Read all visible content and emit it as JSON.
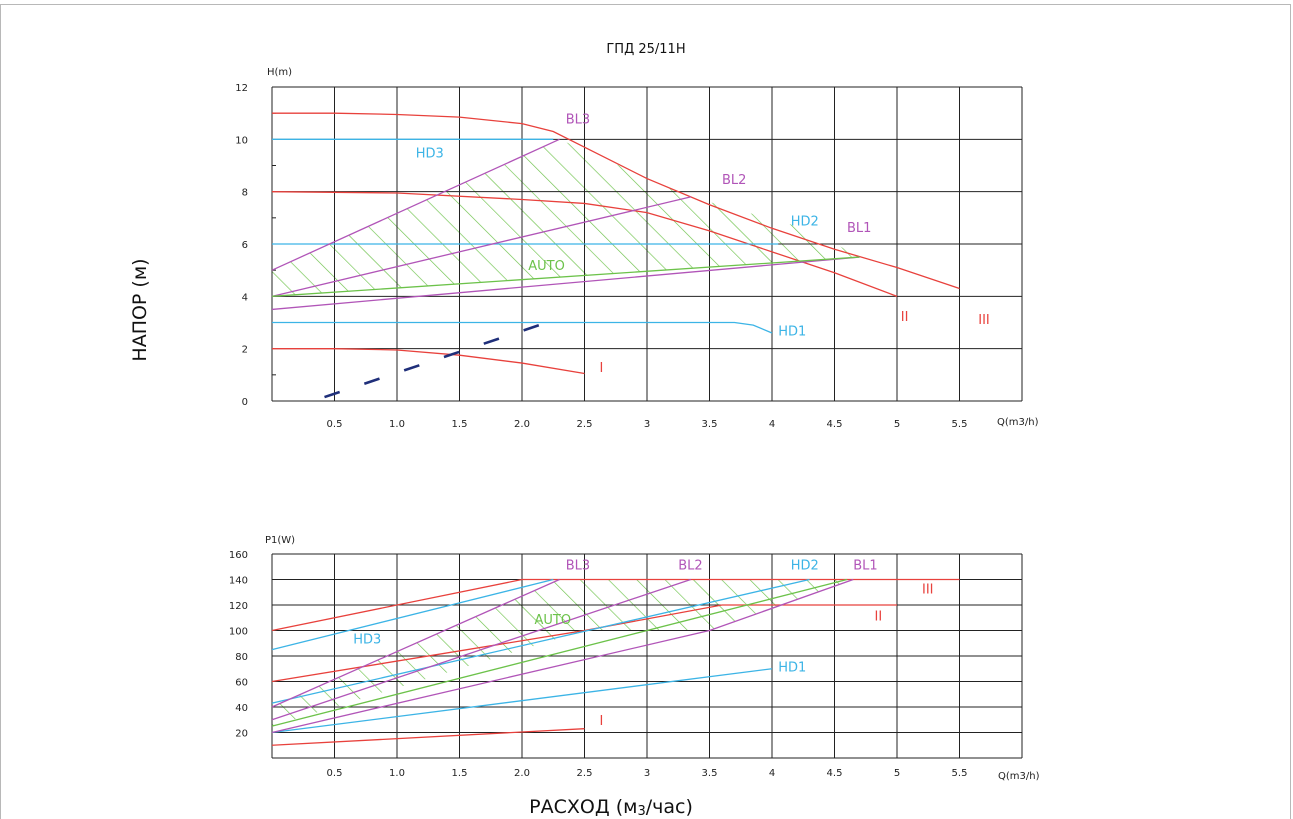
{
  "page": {
    "title": "ГПД 25/11Н",
    "ylabel": "НАПОР (м)",
    "xlabel": "РАСХОД (м3/час)"
  },
  "colors": {
    "red": "#e8413c",
    "blue": "#3cb4e6",
    "purple": "#b155b8",
    "green": "#6cc24a",
    "navy": "#1f2f7a",
    "grid": "#222222"
  },
  "chart_data": [
    {
      "type": "line",
      "title": "",
      "ylabel": "H(m)",
      "xlabel": "Q(m3/h)",
      "xlim": [
        0,
        6
      ],
      "ylim": [
        0,
        12
      ],
      "xticks": [
        "0.5",
        "1.0",
        "1.5",
        "2.0",
        "2.5",
        "3",
        "3.5",
        "4",
        "4.5",
        "5",
        "5.5"
      ],
      "yticks": [
        "0",
        "2",
        "4",
        "6",
        "8",
        "10",
        "12"
      ],
      "grid": true,
      "series": [
        {
          "name": "I",
          "color": "red",
          "x": [
            0,
            0.5,
            1.0,
            1.5,
            2.0,
            2.5
          ],
          "y": [
            2.0,
            2.0,
            1.95,
            1.75,
            1.45,
            1.05
          ]
        },
        {
          "name": "II",
          "color": "red",
          "x": [
            0,
            1.0,
            2.0,
            2.5,
            3.0,
            3.5,
            4.0,
            4.5,
            5.0
          ],
          "y": [
            8.0,
            7.95,
            7.7,
            7.55,
            7.2,
            6.5,
            5.7,
            4.9,
            4.0
          ]
        },
        {
          "name": "III",
          "color": "red",
          "x": [
            0,
            0.5,
            1.0,
            1.5,
            2.0,
            2.25,
            2.5,
            3.0,
            3.5,
            4.0,
            4.5,
            5.0,
            5.5
          ],
          "y": [
            11.0,
            11.0,
            10.95,
            10.85,
            10.6,
            10.3,
            9.7,
            8.5,
            7.5,
            6.6,
            5.8,
            5.1,
            4.3
          ]
        },
        {
          "name": "HD1",
          "color": "blue",
          "x": [
            0,
            3.7,
            3.85,
            4.0
          ],
          "y": [
            3.0,
            3.0,
            2.9,
            2.6
          ]
        },
        {
          "name": "HD2",
          "color": "blue",
          "x": [
            0,
            4.05
          ],
          "y": [
            6.0,
            6.0
          ]
        },
        {
          "name": "HD3",
          "color": "blue",
          "x": [
            0,
            2.25
          ],
          "y": [
            10.0,
            10.0
          ]
        },
        {
          "name": "BL1",
          "color": "purple",
          "x": [
            0,
            4.7
          ],
          "y": [
            3.5,
            5.5
          ]
        },
        {
          "name": "BL2",
          "color": "purple",
          "x": [
            0,
            3.35
          ],
          "y": [
            4.0,
            7.8
          ]
        },
        {
          "name": "BL3",
          "color": "purple",
          "x": [
            0,
            2.3
          ],
          "y": [
            5.0,
            10.0
          ]
        },
        {
          "name": "AUTO",
          "color": "green",
          "x": [
            0,
            4.7
          ],
          "y": [
            4.0,
            5.5
          ]
        },
        {
          "name": "",
          "color": "navy",
          "dashed": true,
          "x": [
            0.42,
            2.2
          ],
          "y": [
            0.15,
            3.0
          ]
        }
      ],
      "labels": [
        {
          "text": "BL3",
          "color": "purple",
          "x": 2.35,
          "y": 10.6
        },
        {
          "text": "HD3",
          "color": "blue",
          "x": 1.15,
          "y": 9.3
        },
        {
          "text": "BL2",
          "color": "purple",
          "x": 3.6,
          "y": 8.3
        },
        {
          "text": "HD2",
          "color": "blue",
          "x": 4.15,
          "y": 6.7
        },
        {
          "text": "BL1",
          "color": "purple",
          "x": 4.6,
          "y": 6.45
        },
        {
          "text": "AUTO",
          "color": "green",
          "x": 2.05,
          "y": 5.0
        },
        {
          "text": "HD1",
          "color": "blue",
          "x": 4.05,
          "y": 2.5
        },
        {
          "text": "I",
          "color": "red",
          "x": 2.62,
          "y": 1.1
        },
        {
          "text": "II",
          "color": "red",
          "x": 5.03,
          "y": 3.05
        },
        {
          "text": "III",
          "color": "red",
          "x": 5.65,
          "y": 2.95
        }
      ]
    },
    {
      "type": "line",
      "title": "",
      "ylabel": "P1(W)",
      "xlabel": "Q(m3/h)",
      "xlim": [
        0,
        6
      ],
      "ylim": [
        0,
        160
      ],
      "xticks": [
        "0.5",
        "1.0",
        "1.5",
        "2.0",
        "2.5",
        "3",
        "3.5",
        "4",
        "4.5",
        "5",
        "5.5"
      ],
      "yticks": [
        "20",
        "40",
        "60",
        "80",
        "100",
        "120",
        "140",
        "160"
      ],
      "grid": true,
      "series": [
        {
          "name": "I",
          "color": "red",
          "x": [
            0,
            2.5
          ],
          "y": [
            10,
            23
          ]
        },
        {
          "name": "II",
          "color": "red",
          "x": [
            0,
            2.5,
            3.6,
            5.0
          ],
          "y": [
            60,
            100,
            120,
            120
          ]
        },
        {
          "name": "III",
          "color": "red",
          "x": [
            0,
            2.0,
            5.5
          ],
          "y": [
            100,
            140,
            140
          ]
        },
        {
          "name": "HD1",
          "color": "blue",
          "x": [
            0,
            4.0
          ],
          "y": [
            20,
            70
          ]
        },
        {
          "name": "HD2",
          "color": "blue",
          "x": [
            0,
            4.3
          ],
          "y": [
            43,
            140
          ]
        },
        {
          "name": "HD3",
          "color": "blue",
          "x": [
            0,
            2.25
          ],
          "y": [
            85,
            140
          ]
        },
        {
          "name": "BL1",
          "color": "purple",
          "x": [
            0,
            3.5,
            4.65
          ],
          "y": [
            20,
            100,
            140
          ]
        },
        {
          "name": "BL2",
          "color": "purple",
          "x": [
            0,
            3.35
          ],
          "y": [
            30,
            140
          ]
        },
        {
          "name": "BL3",
          "color": "purple",
          "x": [
            0,
            2.3
          ],
          "y": [
            40,
            140
          ]
        },
        {
          "name": "AUTO",
          "color": "green",
          "x": [
            0,
            4.6
          ],
          "y": [
            25,
            140
          ]
        }
      ],
      "labels": [
        {
          "text": "BL3",
          "color": "purple",
          "x": 2.35,
          "y": 148
        },
        {
          "text": "BL2",
          "color": "purple",
          "x": 3.25,
          "y": 148
        },
        {
          "text": "HD2",
          "color": "blue",
          "x": 4.15,
          "y": 148
        },
        {
          "text": "BL1",
          "color": "purple",
          "x": 4.65,
          "y": 148
        },
        {
          "text": "HD3",
          "color": "blue",
          "x": 0.65,
          "y": 90
        },
        {
          "text": "AUTO",
          "color": "green",
          "x": 2.1,
          "y": 105
        },
        {
          "text": "III",
          "color": "red",
          "x": 5.2,
          "y": 129
        },
        {
          "text": "II",
          "color": "red",
          "x": 4.82,
          "y": 108
        },
        {
          "text": "HD1",
          "color": "blue",
          "x": 4.05,
          "y": 68
        },
        {
          "text": "I",
          "color": "red",
          "x": 2.62,
          "y": 26
        }
      ]
    }
  ]
}
